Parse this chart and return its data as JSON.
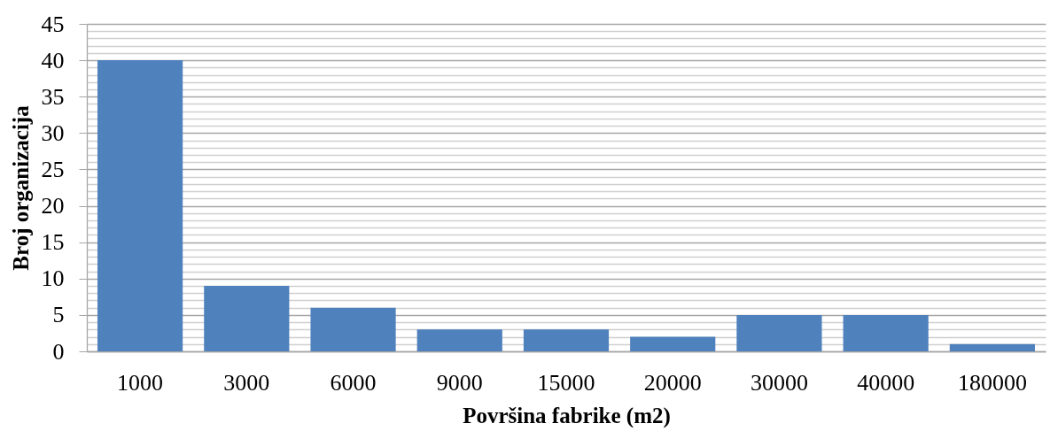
{
  "chart_data": {
    "type": "bar",
    "xlabel": "Površina fabrike (m2)",
    "ylabel": "Broj organizacija",
    "categories": [
      "1000",
      "3000",
      "6000",
      "9000",
      "15000",
      "20000",
      "30000",
      "40000",
      "180000"
    ],
    "values": [
      40,
      9,
      6,
      3,
      3,
      2,
      5,
      5,
      1
    ],
    "color": "#4f81bd",
    "ylim": [
      0,
      45
    ],
    "yticks": [
      0,
      {
        "value": 1,
        "label": null
      },
      {
        "value": 2,
        "label": null
      },
      {
        "value": 3,
        "label": null
      },
      {
        "value": 4,
        "label": null
      },
      5,
      {
        "value": 6,
        "label": null
      },
      {
        "value": 7,
        "label": null
      },
      {
        "value": 8,
        "label": null
      },
      {
        "value": 9,
        "label": null
      },
      10,
      {
        "value": 11,
        "label": null
      },
      {
        "value": 12,
        "label": null
      },
      {
        "value": 13,
        "label": null
      },
      {
        "value": 14,
        "label": null
      },
      15,
      {
        "value": 16,
        "label": null
      },
      {
        "value": 17,
        "label": null
      },
      {
        "value": 18,
        "label": null
      },
      {
        "value": 19,
        "label": null
      },
      20,
      {
        "value": 21,
        "label": null
      },
      {
        "value": 22,
        "label": null
      },
      {
        "value": 23,
        "label": null
      },
      {
        "value": 24,
        "label": null
      },
      25,
      {
        "value": 26,
        "label": null
      },
      {
        "value": 27,
        "label": null
      },
      {
        "value": 28,
        "label": null
      },
      {
        "value": 29,
        "label": null
      },
      30,
      {
        "value": 31,
        "label": null
      },
      {
        "value": 32,
        "label": null
      },
      {
        "value": 33,
        "label": null
      },
      {
        "value": 34,
        "label": null
      },
      35,
      {
        "value": 36,
        "label": null
      },
      {
        "value": 37,
        "label": null
      },
      {
        "value": 38,
        "label": null
      },
      {
        "value": 39,
        "label": null
      },
      40,
      {
        "value": 41,
        "label": null
      },
      {
        "value": 42,
        "label": null
      },
      {
        "value": 43,
        "label": null
      },
      {
        "value": 44,
        "label": null
      },
      45
    ],
    "grid": "y"
  }
}
